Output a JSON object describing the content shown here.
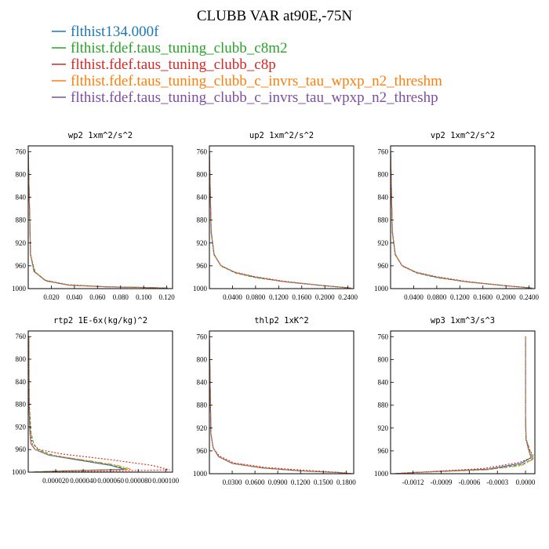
{
  "title": "CLUBB VAR at90E,-75N",
  "colors": {
    "blue": "#1f77b4",
    "green": "#2ca02c",
    "red": "#d62728",
    "orange": "#ff7f0e",
    "purple": "#7b4ea3"
  },
  "legend": [
    {
      "label": "flthist134.000f",
      "color": "#1f77b4"
    },
    {
      "label": "flthist.fdef.taus_tuning_clubb_c8m2",
      "color": "#2ca02c"
    },
    {
      "label": "flthist.fdef.taus_tuning_clubb_c8p",
      "color": "#d62728"
    },
    {
      "label": "flthist.fdef.taus_tuning_clubb_c_invrs_tau_wpxp_n2_threshm",
      "color": "#ff7f0e"
    },
    {
      "label": "flthist.fdef.taus_tuning_clubb_c_invrs_tau_wpxp_n2_threshp",
      "color": "#7b4ea3"
    }
  ],
  "chart_data": [
    {
      "type": "line",
      "title": "wp2  1xm^2/s^2",
      "xlim": [
        0.0,
        0.125
      ],
      "ylim": [
        1000,
        750
      ],
      "x_ticks": [
        0.02,
        0.04,
        0.06,
        0.08,
        0.1,
        0.12
      ],
      "x_tick_labels": [
        "0.020",
        "0.040",
        "0.060",
        "0.080",
        "0.100",
        "0.120"
      ],
      "y_ticks": [
        760,
        800,
        840,
        880,
        920,
        960,
        1000
      ],
      "y_tick_labels": [
        "760",
        "800",
        "840",
        "880",
        "920",
        "960",
        "1000"
      ],
      "series": [
        {
          "color": "#1f77b4",
          "x": [
            0.0,
            0.002,
            0.005,
            0.015,
            0.035,
            0.07,
            0.1,
            0.12
          ],
          "y": [
            760,
            940,
            970,
            986,
            994,
            997,
            998,
            999
          ]
        },
        {
          "color": "#2ca02c",
          "x": [
            0.0,
            0.002,
            0.006,
            0.016,
            0.036,
            0.072,
            0.102,
            0.121
          ],
          "y": [
            760,
            942,
            971,
            987,
            994,
            997,
            998,
            999
          ]
        },
        {
          "color": "#d62728",
          "x": [
            0.0,
            0.002,
            0.005,
            0.014,
            0.034,
            0.068,
            0.098,
            0.118
          ],
          "y": [
            760,
            938,
            969,
            985,
            993,
            997,
            998,
            999
          ]
        },
        {
          "color": "#ff7f0e",
          "x": [
            0.0,
            0.002,
            0.005,
            0.015,
            0.035,
            0.07,
            0.1,
            0.12
          ],
          "y": [
            760,
            940,
            970,
            986,
            994,
            997,
            998,
            999
          ]
        },
        {
          "color": "#7b4ea3",
          "x": [
            0.0,
            0.002,
            0.005,
            0.015,
            0.035,
            0.07,
            0.1,
            0.122
          ],
          "y": [
            760,
            940,
            970,
            986,
            994,
            997,
            998,
            999
          ]
        }
      ]
    },
    {
      "type": "line",
      "title": "up2  1xm^2/s^2",
      "xlim": [
        0.0,
        0.25
      ],
      "ylim": [
        1000,
        750
      ],
      "x_ticks": [
        0.04,
        0.08,
        0.12,
        0.16,
        0.2,
        0.24
      ],
      "x_tick_labels": [
        "0.0400",
        "0.0800",
        "0.1200",
        "0.1600",
        "0.2000",
        "0.2400"
      ],
      "y_ticks": [
        760,
        800,
        840,
        880,
        920,
        960,
        1000
      ],
      "y_tick_labels": [
        "760",
        "800",
        "840",
        "880",
        "920",
        "960",
        "1000"
      ],
      "series": [
        {
          "color": "#1f77b4",
          "x": [
            0.0,
            0.003,
            0.008,
            0.02,
            0.045,
            0.08,
            0.13,
            0.2,
            0.245
          ],
          "y": [
            760,
            900,
            940,
            960,
            972,
            980,
            988,
            995,
            999
          ]
        },
        {
          "color": "#2ca02c",
          "x": [
            0.0,
            0.003,
            0.008,
            0.021,
            0.046,
            0.081,
            0.131,
            0.201,
            0.246
          ],
          "y": [
            760,
            902,
            941,
            961,
            973,
            981,
            988,
            995,
            999
          ]
        },
        {
          "color": "#d62728",
          "x": [
            0.0,
            0.003,
            0.008,
            0.019,
            0.044,
            0.079,
            0.129,
            0.199,
            0.244
          ],
          "y": [
            760,
            898,
            939,
            959,
            971,
            979,
            987,
            995,
            999
          ]
        },
        {
          "color": "#ff7f0e",
          "x": [
            0.0,
            0.003,
            0.008,
            0.02,
            0.045,
            0.08,
            0.13,
            0.2,
            0.245
          ],
          "y": [
            760,
            900,
            940,
            960,
            972,
            980,
            988,
            995,
            999
          ]
        },
        {
          "color": "#7b4ea3",
          "x": [
            0.0,
            0.003,
            0.008,
            0.02,
            0.045,
            0.08,
            0.13,
            0.2,
            0.245
          ],
          "y": [
            760,
            900,
            940,
            960,
            972,
            980,
            988,
            995,
            999
          ]
        }
      ]
    },
    {
      "type": "line",
      "title": "vp2  1xm^2/s^2",
      "xlim": [
        0.0,
        0.25
      ],
      "ylim": [
        1000,
        750
      ],
      "x_ticks": [
        0.04,
        0.08,
        0.12,
        0.16,
        0.2,
        0.24
      ],
      "x_tick_labels": [
        "0.0400",
        "0.0800",
        "0.1200",
        "0.1600",
        "0.2000",
        "0.2400"
      ],
      "y_ticks": [
        760,
        800,
        840,
        880,
        920,
        960,
        1000
      ],
      "y_tick_labels": [
        "760",
        "800",
        "840",
        "880",
        "920",
        "960",
        "1000"
      ],
      "series": [
        {
          "color": "#1f77b4",
          "x": [
            0.0,
            0.003,
            0.008,
            0.02,
            0.045,
            0.08,
            0.13,
            0.2,
            0.245
          ],
          "y": [
            760,
            900,
            940,
            960,
            972,
            980,
            988,
            995,
            999
          ]
        },
        {
          "color": "#2ca02c",
          "x": [
            0.0,
            0.003,
            0.008,
            0.021,
            0.046,
            0.081,
            0.131,
            0.201,
            0.246
          ],
          "y": [
            760,
            902,
            941,
            961,
            973,
            981,
            988,
            995,
            999
          ]
        },
        {
          "color": "#d62728",
          "x": [
            0.0,
            0.003,
            0.008,
            0.019,
            0.044,
            0.079,
            0.129,
            0.199,
            0.244
          ],
          "y": [
            760,
            898,
            939,
            959,
            971,
            979,
            987,
            995,
            999
          ]
        },
        {
          "color": "#ff7f0e",
          "x": [
            0.0,
            0.003,
            0.008,
            0.02,
            0.045,
            0.08,
            0.13,
            0.2,
            0.245
          ],
          "y": [
            760,
            900,
            940,
            960,
            972,
            980,
            988,
            995,
            999
          ]
        },
        {
          "color": "#7b4ea3",
          "x": [
            0.0,
            0.003,
            0.008,
            0.02,
            0.045,
            0.08,
            0.13,
            0.2,
            0.245
          ],
          "y": [
            760,
            900,
            940,
            960,
            972,
            980,
            988,
            995,
            999
          ]
        }
      ]
    },
    {
      "type": "line",
      "title": "rtp2  1E-6x(kg/kg)^2",
      "xlim": [
        0.0,
        0.000105
      ],
      "ylim": [
        1000,
        750
      ],
      "x_ticks": [
        2e-05,
        4e-05,
        6e-05,
        8e-05,
        0.0001
      ],
      "x_tick_labels": [
        "0.000020",
        "0.000040",
        "0.000060",
        "0.000080",
        "0.000100"
      ],
      "y_ticks": [
        760,
        800,
        840,
        880,
        920,
        960,
        1000
      ],
      "y_tick_labels": [
        "760",
        "800",
        "840",
        "880",
        "920",
        "960",
        "1000"
      ],
      "series": [
        {
          "color": "#1f77b4",
          "x": [
            4e-07,
            6e-07,
            1.2e-06,
            2e-06,
            5e-06,
            1.5e-05,
            4e-05,
            6e-05,
            7e-05,
            2e-05,
            3e-06
          ],
          "y": [
            760,
            880,
            930,
            950,
            960,
            970,
            980,
            988,
            995,
            998,
            1000
          ]
        },
        {
          "color": "#2ca02c",
          "x": [
            4e-07,
            8e-07,
            2e-06,
            4e-06,
            7e-06,
            1.8e-05,
            4.2e-05,
            6.2e-05,
            7.2e-05,
            2.2e-05,
            3e-06
          ],
          "y": [
            760,
            880,
            930,
            950,
            960,
            970,
            980,
            988,
            995,
            998,
            1000
          ]
        },
        {
          "color": "#d62728",
          "x": [
            4e-07,
            7e-07,
            1.5e-06,
            3e-06,
            8e-06,
            2.5e-05,
            6e-05,
            9e-05,
            0.000103,
            4e-05,
            3e-06
          ],
          "y": [
            760,
            880,
            930,
            950,
            960,
            968,
            978,
            988,
            996,
            999,
            1000
          ]
        },
        {
          "color": "#ff7f0e",
          "x": [
            4e-07,
            6e-07,
            1.2e-06,
            2e-06,
            5e-06,
            1.6e-05,
            4.5e-05,
            6.5e-05,
            7.5e-05,
            2.5e-05,
            3e-06
          ],
          "y": [
            760,
            880,
            930,
            950,
            960,
            970,
            980,
            988,
            995,
            998,
            1000
          ]
        },
        {
          "color": "#7b4ea3",
          "x": [
            4e-07,
            6e-07,
            1.2e-06,
            2e-06,
            5e-06,
            1.5e-05,
            4e-05,
            6e-05,
            7e-05,
            3e-05,
            3e-06
          ],
          "y": [
            760,
            880,
            930,
            950,
            960,
            970,
            980,
            988,
            995,
            998,
            1000
          ]
        }
      ]
    },
    {
      "type": "line",
      "title": "thlp2  1xK^2",
      "xlim": [
        0.0,
        0.19
      ],
      "ylim": [
        1000,
        750
      ],
      "x_ticks": [
        0.03,
        0.06,
        0.09,
        0.12,
        0.15,
        0.18
      ],
      "x_tick_labels": [
        "0.0300",
        "0.0600",
        "0.0900",
        "0.1200",
        "0.1500",
        "0.1800"
      ],
      "y_ticks": [
        760,
        800,
        840,
        880,
        920,
        960,
        1000
      ],
      "y_tick_labels": [
        "760",
        "800",
        "840",
        "880",
        "920",
        "960",
        "1000"
      ],
      "series": [
        {
          "color": "#1f77b4",
          "x": [
            0.0,
            0.002,
            0.005,
            0.012,
            0.03,
            0.07,
            0.12,
            0.17,
            0.185
          ],
          "y": [
            760,
            930,
            955,
            970,
            982,
            990,
            995,
            998,
            1000
          ]
        },
        {
          "color": "#2ca02c",
          "x": [
            0.0,
            0.002,
            0.005,
            0.012,
            0.03,
            0.07,
            0.12,
            0.172,
            0.188
          ],
          "y": [
            760,
            930,
            955,
            970,
            982,
            990,
            995,
            998,
            1000
          ]
        },
        {
          "color": "#d62728",
          "x": [
            0.0,
            0.002,
            0.005,
            0.013,
            0.032,
            0.074,
            0.125,
            0.175,
            0.188
          ],
          "y": [
            760,
            930,
            955,
            969,
            981,
            989,
            994,
            998,
            1000
          ]
        },
        {
          "color": "#ff7f0e",
          "x": [
            0.0,
            0.002,
            0.005,
            0.012,
            0.031,
            0.072,
            0.122,
            0.172,
            0.187
          ],
          "y": [
            760,
            930,
            955,
            970,
            982,
            990,
            995,
            998,
            1000
          ]
        },
        {
          "color": "#7b4ea3",
          "x": [
            0.0,
            0.002,
            0.005,
            0.012,
            0.03,
            0.07,
            0.12,
            0.17,
            0.185
          ],
          "y": [
            760,
            930,
            955,
            970,
            982,
            990,
            995,
            998,
            1000
          ]
        }
      ]
    },
    {
      "type": "line",
      "title": "wp3  1xm^3/s^3",
      "xlim": [
        -0.00144,
        0.0001
      ],
      "ylim": [
        1000,
        750
      ],
      "x_ticks": [
        -0.0012,
        -0.0009,
        -0.0006,
        -0.0003,
        0.0
      ],
      "x_tick_labels": [
        "-0.0012",
        "-0.0009",
        "-0.0006",
        "-0.0003",
        "0.0000"
      ],
      "y_ticks": [
        760,
        800,
        840,
        880,
        920,
        960,
        1000
      ],
      "y_tick_labels": [
        "760",
        "800",
        "840",
        "880",
        "920",
        "960",
        "1000"
      ],
      "series": [
        {
          "color": "#1f77b4",
          "x": [
            0.0,
            0.0,
            5e-06,
            4e-05,
            6e-05,
            -5e-05,
            -0.0004,
            -0.0012,
            -0.0014
          ],
          "y": [
            760,
            900,
            940,
            962,
            972,
            982,
            992,
            998,
            1000
          ]
        },
        {
          "color": "#2ca02c",
          "x": [
            0.0,
            0.0,
            8e-06,
            5e-05,
            8e-05,
            -4e-05,
            -0.0004,
            -0.0012,
            -0.0014
          ],
          "y": [
            760,
            900,
            940,
            962,
            974,
            984,
            993,
            998,
            1000
          ]
        },
        {
          "color": "#d62728",
          "x": [
            0.0,
            0.0,
            6e-06,
            5e-05,
            9e-05,
            -6e-05,
            -0.00045,
            -0.0012,
            -0.0014
          ],
          "y": [
            760,
            900,
            940,
            960,
            970,
            980,
            991,
            998,
            1000
          ]
        },
        {
          "color": "#ff7f0e",
          "x": [
            0.0,
            0.0,
            5e-06,
            4e-05,
            7e-05,
            -5e-05,
            -0.00042,
            -0.0012,
            -0.0014
          ],
          "y": [
            760,
            900,
            940,
            962,
            976,
            986,
            993,
            998,
            1000
          ]
        },
        {
          "color": "#7b4ea3",
          "x": [
            0.0,
            0.0,
            5e-06,
            4e-05,
            6e-05,
            -5e-05,
            -0.0004,
            -0.0012,
            -0.00142
          ],
          "y": [
            760,
            900,
            940,
            962,
            972,
            982,
            992,
            998,
            1000
          ]
        }
      ]
    }
  ]
}
